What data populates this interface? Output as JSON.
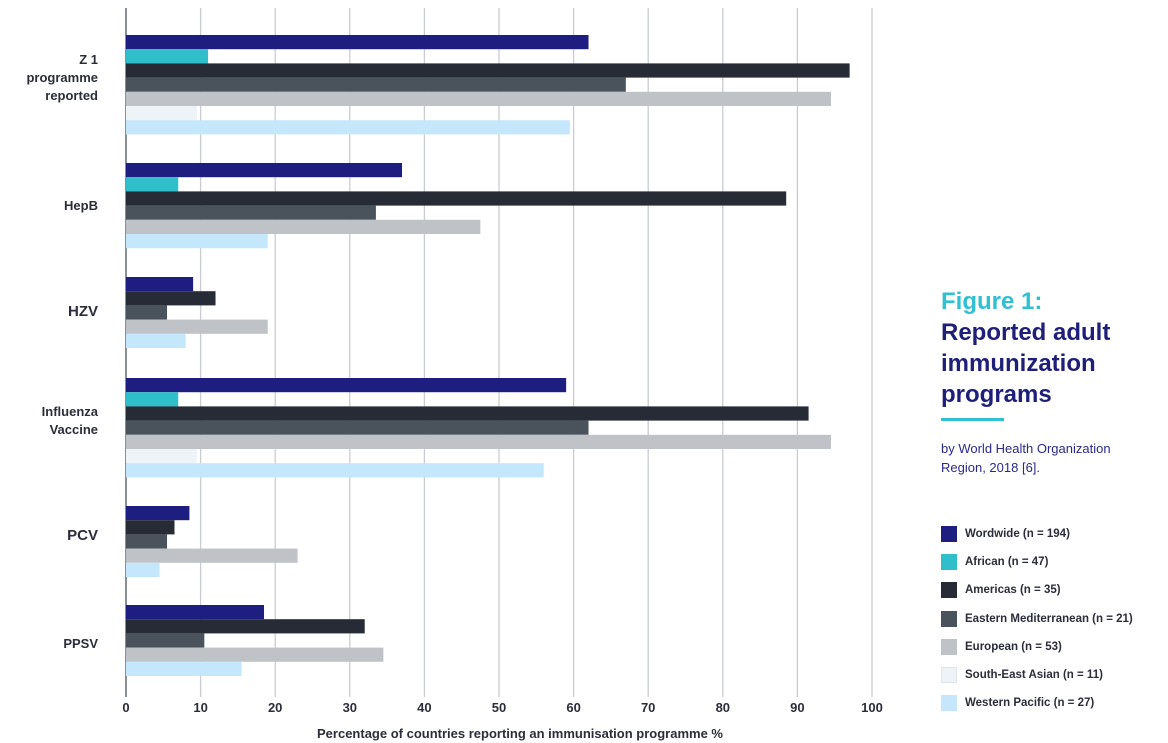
{
  "figure": {
    "label": "Figure 1:",
    "title": "Reported adult\nimmunization\nprograms",
    "subtitle": "by World Health Organization\nRegion, 2018 [6]."
  },
  "chart_data": {
    "type": "bar",
    "orientation": "horizontal",
    "xlabel": "Percentage of countries reporting an immunisation programme %",
    "xlim": [
      0,
      100
    ],
    "xticks": [
      0,
      10,
      20,
      30,
      40,
      50,
      60,
      70,
      80,
      90,
      100
    ],
    "grid": true,
    "legend_position": "right",
    "categories": [
      {
        "label": "Z 1\nprogramme\nreported"
      },
      {
        "label": "HepB"
      },
      {
        "label": "HZV"
      },
      {
        "label": "Influenza\nVaccine"
      },
      {
        "label": "PCV"
      },
      {
        "label": "PPSV"
      }
    ],
    "series": [
      {
        "name": "Wordwide (n = 194)",
        "color": "#1e1e80",
        "values": [
          62,
          37,
          9,
          59,
          8.5,
          18.5
        ]
      },
      {
        "name": "African (n = 47)",
        "color": "#2fbfca",
        "values": [
          11,
          7,
          null,
          7,
          null,
          null
        ]
      },
      {
        "name": "Americas (n = 35)",
        "color": "#262b36",
        "values": [
          97,
          88.5,
          12,
          91.5,
          6.5,
          32
        ]
      },
      {
        "name": "Eastern Mediterranean (n = 21)",
        "color": "#4a525c",
        "values": [
          67,
          33.5,
          5.5,
          62,
          5.5,
          10.5
        ]
      },
      {
        "name": "European (n = 53)",
        "color": "#bfc3c8",
        "values": [
          94.5,
          47.5,
          19,
          94.5,
          23,
          34.5
        ]
      },
      {
        "name": "South-East Asian (n = 11)",
        "color": "#eef3f7",
        "values": [
          9.5,
          null,
          null,
          9.5,
          null,
          null
        ]
      },
      {
        "name": "Western Pacific (n = 27)",
        "color": "#c5e7fb",
        "values": [
          59.5,
          19,
          8,
          56,
          4.5,
          15.5
        ]
      }
    ]
  }
}
